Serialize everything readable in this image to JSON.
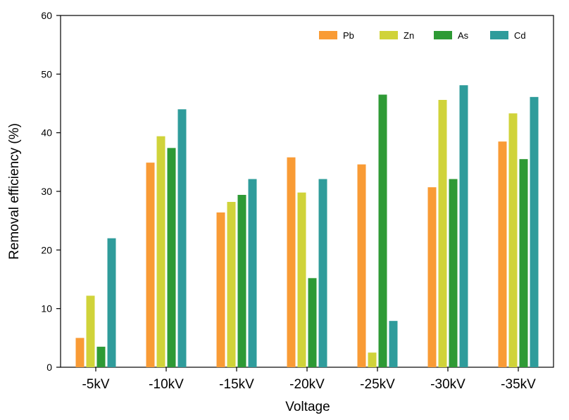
{
  "chart_data": {
    "type": "bar",
    "title": "",
    "xlabel": "Voltage",
    "ylabel": "Removal efficiency (%)",
    "ylim": [
      0,
      60
    ],
    "yticks": [
      "0",
      "10",
      "20",
      "30",
      "40",
      "50",
      "60"
    ],
    "categories": [
      "-5kV",
      "-10kV",
      "-15kV",
      "-20kV",
      "-25kV",
      "-30kV",
      "-35kV"
    ],
    "series": [
      {
        "name": "Pb",
        "color": "#F99B35",
        "values": [
          5.0,
          34.9,
          26.4,
          35.8,
          34.6,
          30.7,
          38.5
        ]
      },
      {
        "name": "Zn",
        "color": "#D0D33A",
        "values": [
          12.2,
          39.4,
          28.2,
          29.8,
          2.5,
          45.6,
          43.3
        ]
      },
      {
        "name": "As",
        "color": "#2E9A35",
        "values": [
          3.5,
          37.4,
          29.4,
          15.2,
          46.5,
          32.1,
          35.5
        ]
      },
      {
        "name": "Cd",
        "color": "#2F9C9B",
        "values": [
          22.0,
          44.0,
          32.1,
          32.1,
          7.9,
          48.1,
          46.1
        ]
      }
    ],
    "grid": false,
    "legend_position": "top-right"
  }
}
